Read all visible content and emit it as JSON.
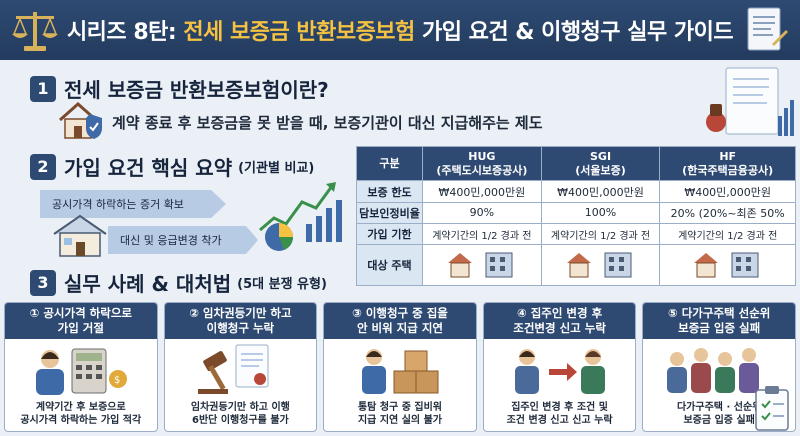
{
  "header": {
    "title_prefix": "시리즈 8탄: ",
    "title_highlight": "전세 보증금 반환보증보험",
    "title_suffix": " 가입 요건 & 이행청구 실무 가이드"
  },
  "section1": {
    "number": "1",
    "title": "전세 보증금 반환보증보험이란?",
    "description": "계약 종료 후 보증금을 못 받을 때, 보증기관이 대신 지급해주는 제도"
  },
  "section2": {
    "number": "2",
    "title": "가입 요건 핵심 요약",
    "subtitle": "(기관별 비교)",
    "arrows": [
      "공시가격 하락하는 증거 확보",
      "대신 및 응급변경 착가"
    ],
    "table": {
      "corner": "구분",
      "columns": [
        {
          "name": "HUG",
          "sub": "(주택도시보증공사)"
        },
        {
          "name": "SGI",
          "sub": "(서울보증)"
        },
        {
          "name": "HF",
          "sub": "(한국주택금융공사)"
        }
      ],
      "rows": [
        {
          "label": "보증 한도",
          "values": [
            "₩400민,000만원",
            "₩400민,000만원",
            "₩400민,000만원"
          ]
        },
        {
          "label": "담보인정비율",
          "values": [
            "90%",
            "100%",
            "20% (20%~최존 50%"
          ]
        },
        {
          "label": "가입 기한",
          "values": [
            "계약기간의 1/2 경과 전",
            "계약기간의 1/2 경과 전",
            "계약기간의 1/2 경과 전"
          ]
        },
        {
          "label": "대상 주택",
          "values": [
            "",
            "",
            ""
          ]
        }
      ]
    }
  },
  "section3": {
    "number": "3",
    "title": "실무 사례 & 대처법",
    "subtitle": "(5대 분쟁 유형)",
    "cards": [
      {
        "head1": "① 공시가격 하락으로",
        "head2": "가입 거절",
        "foot1": "계약기간 후 보증으로",
        "foot2": "공시가격 하락하는 가입 적각"
      },
      {
        "head1": "② 임차권등기만 하고",
        "head2": "이행청구 누락",
        "foot1": "임차권등기만 하고 이행",
        "foot2": "6반단 이행청구를 불가"
      },
      {
        "head1": "③ 이행청구 중 집을",
        "head2": "안 비워 지급 지연",
        "foot1": "통탐 청구 중 집비워",
        "foot2": "지급 지연 실의 불가"
      },
      {
        "head1": "④ 집주인 변경 후",
        "head2": "조건변경 신고 누락",
        "foot1": "집주인 변경 후 조건 및",
        "foot2": "조건 변경 신고 신고 누락"
      },
      {
        "head1": "⑤ 다가구주택 선순위",
        "head2": "보증금 입증 실패",
        "foot1": "다가구주택 · 선순위",
        "foot2": "보증금 입증 실패"
      }
    ]
  },
  "colors": {
    "navy": "#2e4a72",
    "highlight": "#f5c242",
    "light_blue": "#b7cbe4",
    "background": "#eaf0f6"
  },
  "icons": [
    "scale-icon",
    "document-icon",
    "house-shield-icon",
    "house-icon",
    "chart-icon",
    "pie-chart-icon",
    "building-icon",
    "calculator-icon",
    "gavel-icon",
    "boxes-icon",
    "people-icon",
    "clipboard-icon"
  ]
}
